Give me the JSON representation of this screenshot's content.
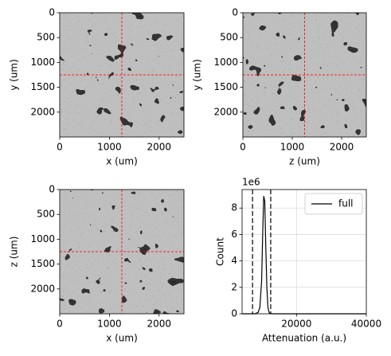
{
  "chart_data": [
    {
      "type": "image",
      "xlabel": "x (um)",
      "ylabel": "y (um)",
      "xlim": [
        0,
        2500
      ],
      "ylim": [
        2500,
        0
      ],
      "xticks": [
        0,
        1000,
        2000
      ],
      "yticks": [
        0,
        500,
        1000,
        1500,
        2000
      ],
      "crosshair": {
        "x": 1250,
        "y": 1250,
        "color": "#ff0000"
      }
    },
    {
      "type": "image",
      "xlabel": "z (um)",
      "ylabel": "y (um)",
      "xlim": [
        0,
        2500
      ],
      "ylim": [
        2500,
        0
      ],
      "xticks": [
        0,
        1000,
        2000
      ],
      "yticks": [
        0,
        500,
        1000,
        1500,
        2000
      ],
      "crosshair": {
        "x": 1250,
        "y": 1250,
        "color": "#ff0000"
      }
    },
    {
      "type": "image",
      "xlabel": "x (um)",
      "ylabel": "z (um)",
      "xlim": [
        0,
        2500
      ],
      "ylim": [
        2500,
        0
      ],
      "xticks": [
        0,
        1000,
        2000
      ],
      "yticks": [
        0,
        500,
        1000,
        1500,
        2000
      ],
      "crosshair": {
        "x": 1250,
        "y": 1250,
        "color": "#ff0000"
      }
    },
    {
      "type": "line",
      "xlabel": "Attenuation (a.u.)",
      "ylabel": "Count",
      "y_offset_label": "1e6",
      "xlim": [
        4400,
        40000
      ],
      "ylim": [
        0,
        9.4
      ],
      "xticks": [
        20000,
        40000
      ],
      "yticks": [
        0,
        2,
        4,
        6,
        8
      ],
      "grid": true,
      "legend": "upper right",
      "x": [
        4400,
        8000,
        9000,
        9500,
        10000,
        10300,
        10600,
        10900,
        11200,
        11500,
        11800,
        12200,
        13000,
        40000
      ],
      "series": [
        {
          "name": "full",
          "color": "#000000",
          "values": [
            0,
            0,
            0.1,
            0.5,
            2.5,
            6,
            8.9,
            8.5,
            5,
            2,
            0.5,
            0.05,
            0,
            0
          ]
        }
      ],
      "vlines": [
        7400,
        12600
      ]
    }
  ]
}
